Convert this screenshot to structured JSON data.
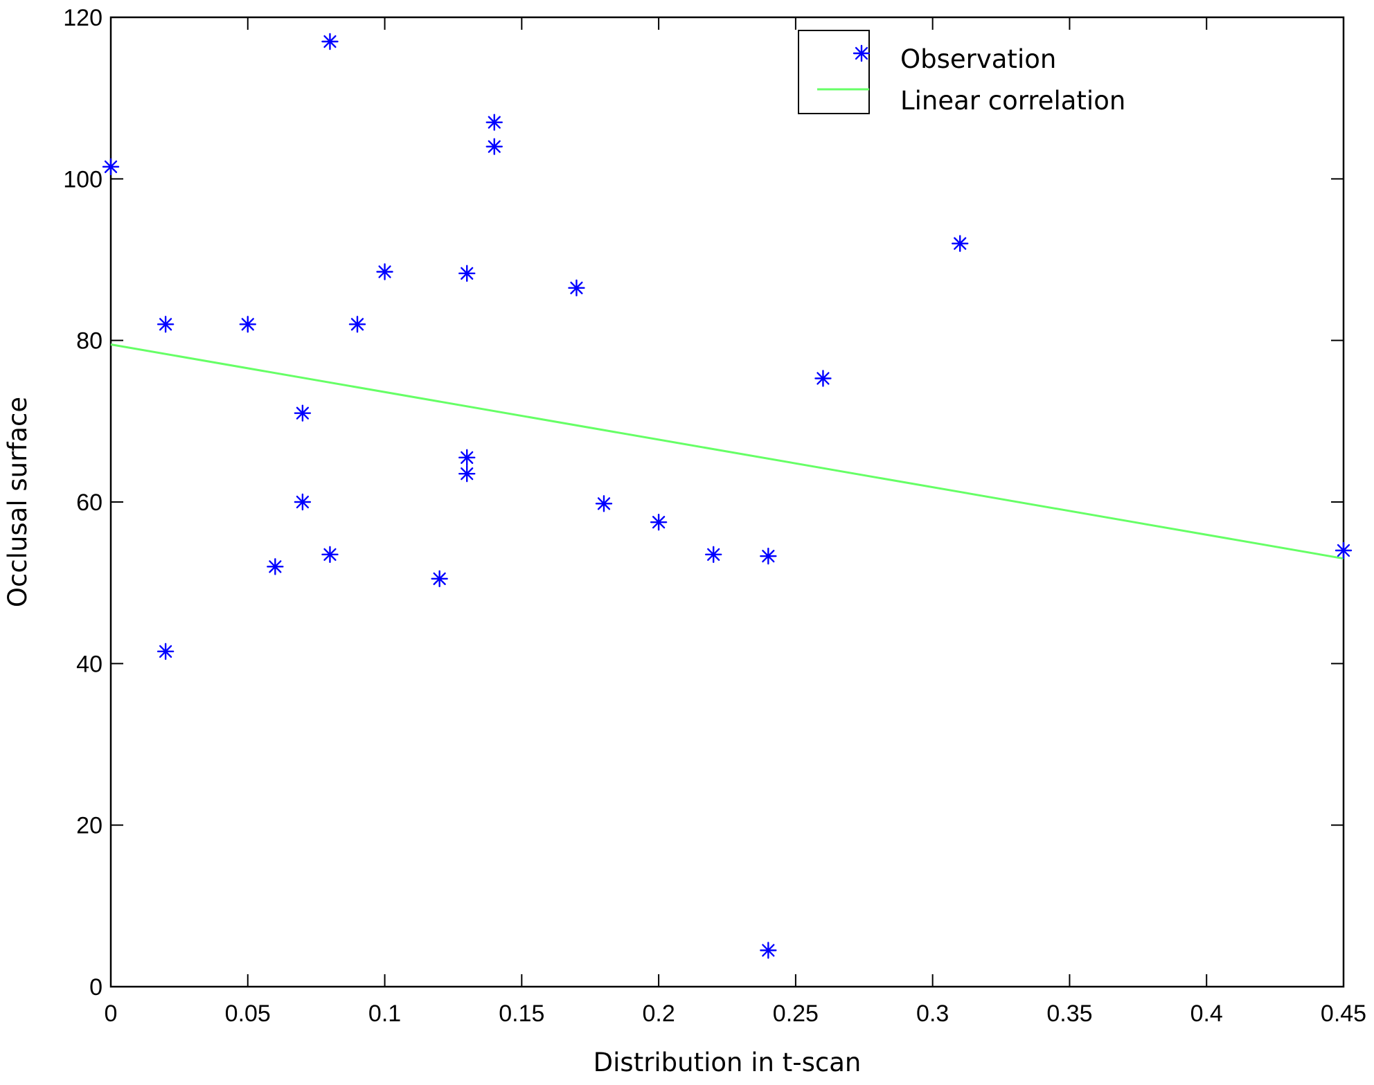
{
  "chart_data": {
    "type": "scatter",
    "title": "",
    "xlabel": "Distribution in t-scan",
    "ylabel": "Occlusal surface",
    "xlim": [
      0,
      0.45
    ],
    "ylim": [
      0,
      120
    ],
    "xticks": [
      "0",
      "0.05",
      "0.1",
      "0.15",
      "0.2",
      "0.25",
      "0.3",
      "0.35",
      "0.4",
      "0.45"
    ],
    "yticks": [
      "0",
      "20",
      "40",
      "60",
      "80",
      "100",
      "120"
    ],
    "grid": false,
    "legend_position": "top-right",
    "series": [
      {
        "name": "Observation",
        "marker": "asterisk",
        "color": "#0000ff",
        "points": [
          {
            "x": 0.0,
            "y": 101.5
          },
          {
            "x": 0.02,
            "y": 82.0
          },
          {
            "x": 0.02,
            "y": 41.5
          },
          {
            "x": 0.05,
            "y": 82.0
          },
          {
            "x": 0.06,
            "y": 52.0
          },
          {
            "x": 0.07,
            "y": 71.0
          },
          {
            "x": 0.07,
            "y": 60.0
          },
          {
            "x": 0.08,
            "y": 117.0
          },
          {
            "x": 0.08,
            "y": 53.5
          },
          {
            "x": 0.09,
            "y": 82.0
          },
          {
            "x": 0.1,
            "y": 88.5
          },
          {
            "x": 0.12,
            "y": 50.5
          },
          {
            "x": 0.13,
            "y": 88.3
          },
          {
            "x": 0.13,
            "y": 65.5
          },
          {
            "x": 0.13,
            "y": 63.5
          },
          {
            "x": 0.14,
            "y": 107.0
          },
          {
            "x": 0.14,
            "y": 104.0
          },
          {
            "x": 0.17,
            "y": 86.5
          },
          {
            "x": 0.18,
            "y": 59.8
          },
          {
            "x": 0.2,
            "y": 57.5
          },
          {
            "x": 0.22,
            "y": 53.5
          },
          {
            "x": 0.24,
            "y": 53.3
          },
          {
            "x": 0.24,
            "y": 4.5
          },
          {
            "x": 0.26,
            "y": 75.3
          },
          {
            "x": 0.31,
            "y": 92.0
          },
          {
            "x": 0.45,
            "y": 54.0
          }
        ]
      },
      {
        "name": "Linear correlation",
        "type": "line",
        "color": "#66ff66",
        "points": [
          {
            "x": 0.0,
            "y": 79.5
          },
          {
            "x": 0.45,
            "y": 53.0
          }
        ]
      }
    ]
  }
}
